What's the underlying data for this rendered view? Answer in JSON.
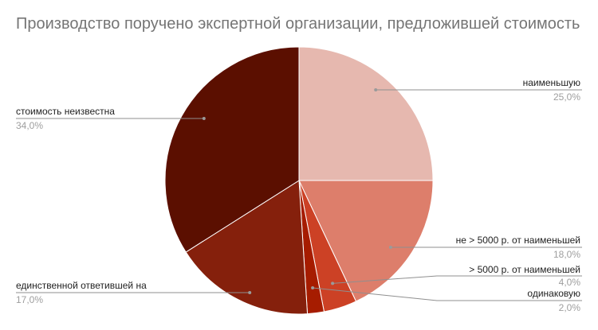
{
  "chart_data": {
    "type": "pie",
    "title": "Производство поручено экспертной организации, предложившей стоимость",
    "slices": [
      {
        "label": "наименьшую",
        "value_label": "25,0%",
        "value": 25.0,
        "color": "#e6b8af"
      },
      {
        "label": "не > 5000 р. от наименьшей",
        "value_label": "18,0%",
        "value": 18.0,
        "color": "#dd7e6b"
      },
      {
        "label": "> 5000 р. от наименьшей",
        "value_label": "4,0%",
        "value": 4.0,
        "color": "#cc4125"
      },
      {
        "label": "одинаковую",
        "value_label": "2,0%",
        "value": 2.0,
        "color": "#a61c00"
      },
      {
        "label": "единственной ответившей на",
        "value_label": "17,0%",
        "value": 17.0,
        "color": "#85200c"
      },
      {
        "label": "стоимость неизвестна",
        "value_label": "34,0%",
        "value": 34.0,
        "color": "#5b0f00"
      }
    ]
  }
}
